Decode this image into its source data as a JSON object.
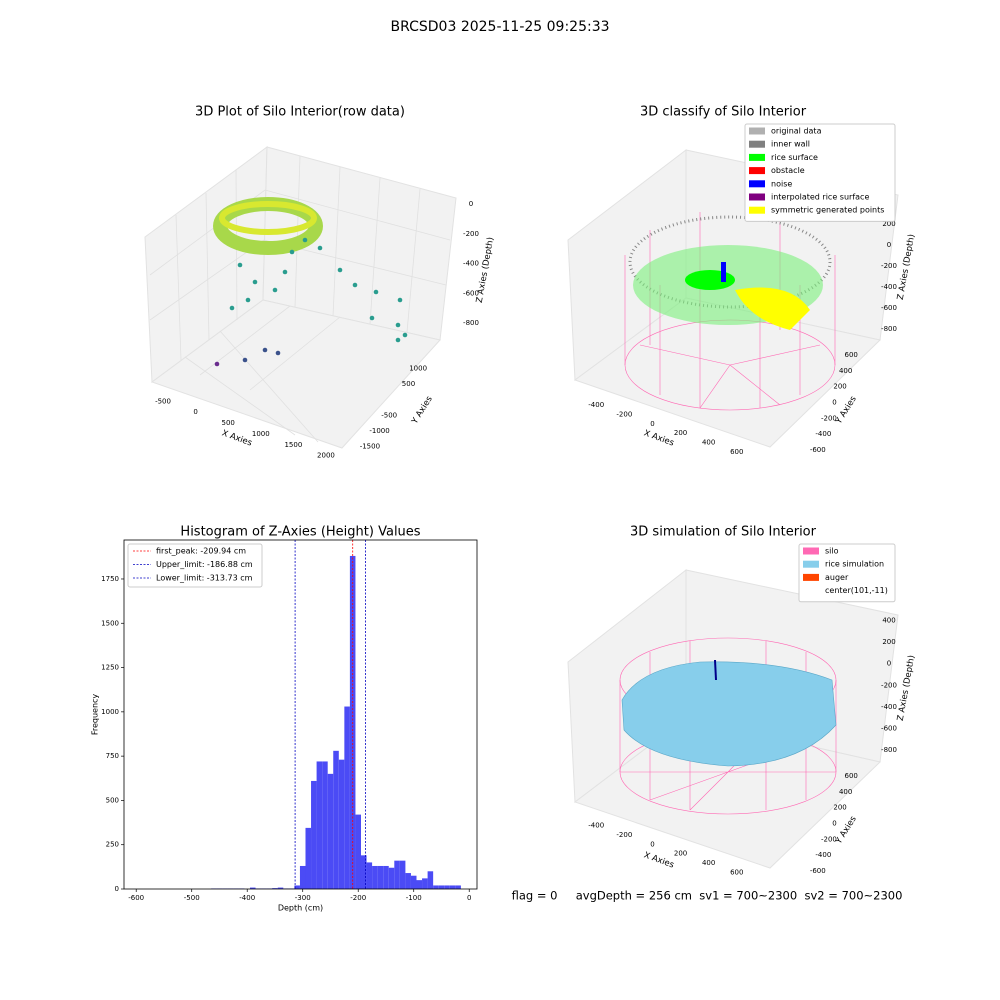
{
  "title": "BRCSD03 2025-11-25 09:25:33",
  "footer": "flag = 0     avgDepth = 256 cm  sv1 = 700~2300  sv2 = 700~2300",
  "chart_data": [
    {
      "type": "scatter3d",
      "title": "3D Plot of Silo Interior(row data)",
      "x_label": "X Axies",
      "y_label": "Y Axies",
      "z_label": "Z Axies (Depth)",
      "xlim": [
        -700,
        2200
      ],
      "xticks": [
        -500,
        0,
        500,
        1000,
        1500,
        2000
      ],
      "ylim": [
        -1700,
        1200
      ],
      "yticks": [
        -1500,
        -1000,
        -500,
        500,
        1000
      ],
      "zlim": [
        -950,
        80
      ],
      "zticks": [
        -800,
        -600,
        -400,
        -200,
        0
      ]
    },
    {
      "type": "scatter3d",
      "title": "3D classify of Silo Interior",
      "x_label": "X Axies",
      "y_label": "Y Axies",
      "z_label": "Z Axies (Depth)",
      "xlim": [
        -480,
        680
      ],
      "xticks": [
        -400,
        -200,
        0,
        200,
        400,
        600
      ],
      "ylim": [
        -700,
        700
      ],
      "yticks": [
        -600,
        -400,
        -200,
        0,
        200,
        400,
        600
      ],
      "zlim": [
        -900,
        450
      ],
      "zticks": [
        -800,
        -600,
        -400,
        -200,
        0,
        200,
        400
      ],
      "legend": [
        {
          "name": "original data",
          "color": "#b0b0b0"
        },
        {
          "name": "inner wall",
          "color": "#808080"
        },
        {
          "name": "rice surface",
          "color": "#00ff00"
        },
        {
          "name": "obstacle",
          "color": "#ff0000"
        },
        {
          "name": "noise",
          "color": "#0000ff"
        },
        {
          "name": "interpolated rice surface",
          "color": "#800080"
        },
        {
          "name": "symmetric generated points",
          "color": "#ffff00"
        }
      ]
    },
    {
      "type": "histogram",
      "title": "Histogram of Z-Axies (Height) Values",
      "x_label": "Depth (cm)",
      "y_label": "Frequency",
      "color": "#4b4bf5",
      "bins": [
        -465,
        -455,
        -445,
        -435,
        -425,
        -415,
        -405,
        -395,
        -385,
        -375,
        -365,
        -355,
        -345,
        -335,
        -325,
        -315,
        -305,
        -295,
        -285,
        -275,
        -265,
        -255,
        -245,
        -235,
        -225,
        -215,
        -205,
        -195,
        -185,
        -175,
        -165,
        -155,
        -145,
        -135,
        -125,
        -115,
        -105,
        -95,
        -85,
        -75,
        -65,
        -55,
        -45,
        -35,
        -25,
        -15
      ],
      "counts": [
        3,
        3,
        3,
        3,
        3,
        3,
        0,
        8,
        3,
        3,
        3,
        5,
        8,
        3,
        3,
        20,
        130,
        345,
        610,
        720,
        720,
        650,
        780,
        730,
        1030,
        1880,
        420,
        190,
        150,
        130,
        130,
        130,
        120,
        160,
        160,
        90,
        75,
        50,
        60,
        100,
        20,
        20,
        20,
        20,
        20
      ],
      "lines": [
        {
          "label": "first_peak: -209.94 cm",
          "value": -209.94,
          "color": "#ff0000"
        },
        {
          "label": "Upper_limit: -186.88 cm",
          "value": -186.88,
          "color": "#0000c0"
        },
        {
          "label": "Lower_limit: -313.73 cm",
          "value": -313.73,
          "color": "#0000c0"
        }
      ],
      "xlim": [
        -622,
        14
      ],
      "xticks": [
        -600,
        -500,
        -400,
        -300,
        -200,
        -100,
        0
      ],
      "ylim": [
        0,
        1970
      ],
      "yticks": [
        0,
        250,
        500,
        750,
        1000,
        1250,
        1500,
        1750
      ]
    },
    {
      "type": "surface3d",
      "title": "3D simulation of Silo Interior",
      "x_label": "X Axies",
      "y_label": "Y Axies",
      "z_label": "Z Axies (Depth)",
      "xlim": [
        -480,
        680
      ],
      "xticks": [
        -400,
        -200,
        0,
        200,
        400,
        600
      ],
      "ylim": [
        -700,
        700
      ],
      "yticks": [
        -600,
        -400,
        -200,
        0,
        200,
        400,
        600
      ],
      "zlim": [
        -900,
        450
      ],
      "zticks": [
        -800,
        -600,
        -400,
        -200,
        0,
        200,
        400
      ],
      "legend": [
        {
          "name": "silo",
          "color": "#ff69b4"
        },
        {
          "name": "rice simulation",
          "color": "#87ceeb"
        },
        {
          "name": "auger",
          "color": "#ff4500"
        },
        {
          "name": "center(101,-11)"
        }
      ]
    }
  ]
}
